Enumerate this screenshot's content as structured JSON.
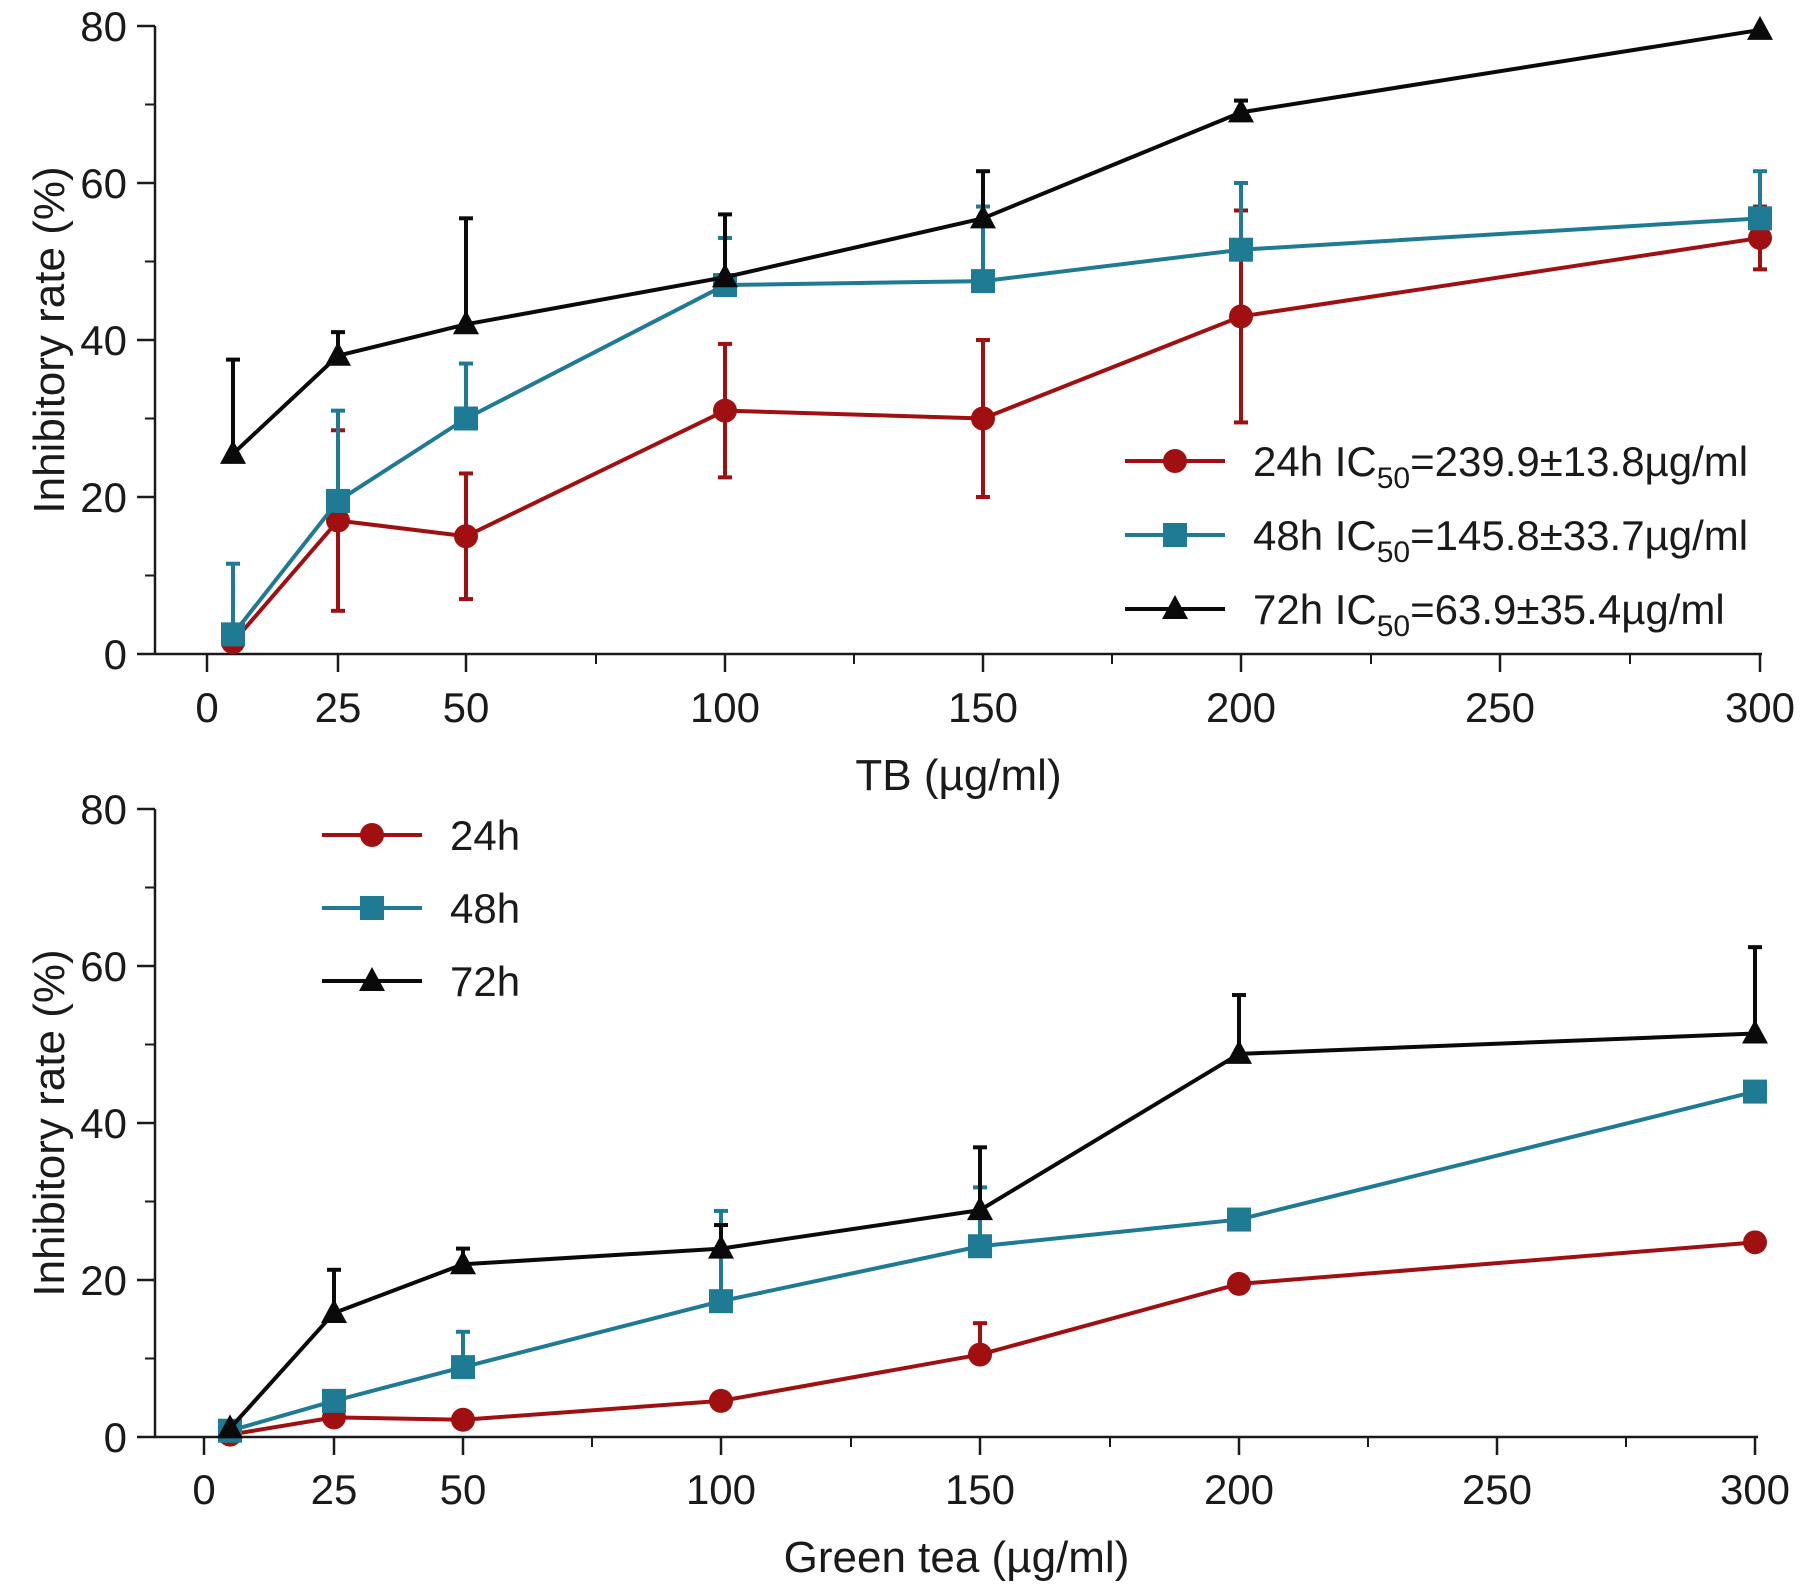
{
  "colors": {
    "24h": "#a01010",
    "48h": "#1f7a93",
    "72h": "#0a0a0a",
    "axis": "#1a1a1a"
  },
  "chart_data": [
    {
      "id": "top",
      "type": "line",
      "title": "",
      "xlabel": "TB (µg/ml)",
      "ylabel": "Inhibitory rate (%)",
      "x_display_ticks": [
        "0",
        "25",
        "50",
        "100",
        "150",
        "200",
        "250",
        "300"
      ],
      "ylim": [
        0,
        80
      ],
      "y_ticks": [
        "0",
        "20",
        "40",
        "60",
        "80"
      ],
      "x_categories": [
        "5",
        "25",
        "50",
        "100",
        "150",
        "200",
        "300"
      ],
      "legend_position": "right-middle",
      "series": [
        {
          "key": "24h",
          "label_pre": "24h IC",
          "label_sub": "50",
          "label_post": "=239.9±13.8µg/ml",
          "marker": "circle",
          "values": [
            1.5,
            17,
            15,
            31,
            30,
            43,
            53
          ],
          "errors": [
            0,
            11.5,
            8,
            8.5,
            10,
            13.5,
            4
          ]
        },
        {
          "key": "48h",
          "label_pre": "48h IC",
          "label_sub": "50",
          "label_post": "=145.8±33.7µg/ml",
          "marker": "square",
          "values": [
            2.5,
            19.5,
            30,
            47,
            47.5,
            51.5,
            55.5
          ],
          "errors": [
            9,
            11.5,
            7,
            6,
            9.5,
            8.5,
            6
          ]
        },
        {
          "key": "72h",
          "label_pre": "72h IC",
          "label_sub": "50",
          "label_post": "=63.9±35.4µg/ml",
          "marker": "triangle",
          "values": [
            25.5,
            38,
            42,
            48,
            55.5,
            69,
            79.5
          ],
          "errors": [
            12,
            3,
            13.5,
            8,
            6,
            1.5,
            0
          ]
        }
      ]
    },
    {
      "id": "bottom",
      "type": "line",
      "title": "",
      "xlabel": "Green tea (µg/ml)",
      "ylabel": "Inhibitory rate (%)",
      "x_display_ticks": [
        "0",
        "25",
        "50",
        "100",
        "150",
        "200",
        "250",
        "300"
      ],
      "ylim": [
        0,
        80
      ],
      "y_ticks": [
        "0",
        "20",
        "40",
        "60",
        "80"
      ],
      "x_categories": [
        "5",
        "25",
        "50",
        "100",
        "150",
        "200",
        "300"
      ],
      "legend_position": "top-left",
      "series": [
        {
          "key": "24h",
          "label_pre": "24h",
          "label_sub": "",
          "label_post": "",
          "marker": "circle",
          "values": [
            0.3,
            2.5,
            2.2,
            4.6,
            10.5,
            19.5,
            24.8
          ],
          "errors": [
            0,
            0,
            0,
            0,
            4,
            0,
            0
          ]
        },
        {
          "key": "48h",
          "label_pre": "48h",
          "label_sub": "",
          "label_post": "",
          "marker": "square",
          "values": [
            0.8,
            4.6,
            8.9,
            17.3,
            24.3,
            27.7,
            44
          ],
          "errors": [
            0,
            0,
            4.5,
            11.5,
            7.5,
            0,
            0
          ]
        },
        {
          "key": "72h",
          "label_pre": "72h",
          "label_sub": "",
          "label_post": "",
          "marker": "triangle",
          "values": [
            1.1,
            15.8,
            22,
            24,
            28.9,
            48.8,
            51.4
          ],
          "errors": [
            0,
            5.5,
            2,
            3,
            8,
            7.5,
            11
          ]
        }
      ]
    }
  ]
}
